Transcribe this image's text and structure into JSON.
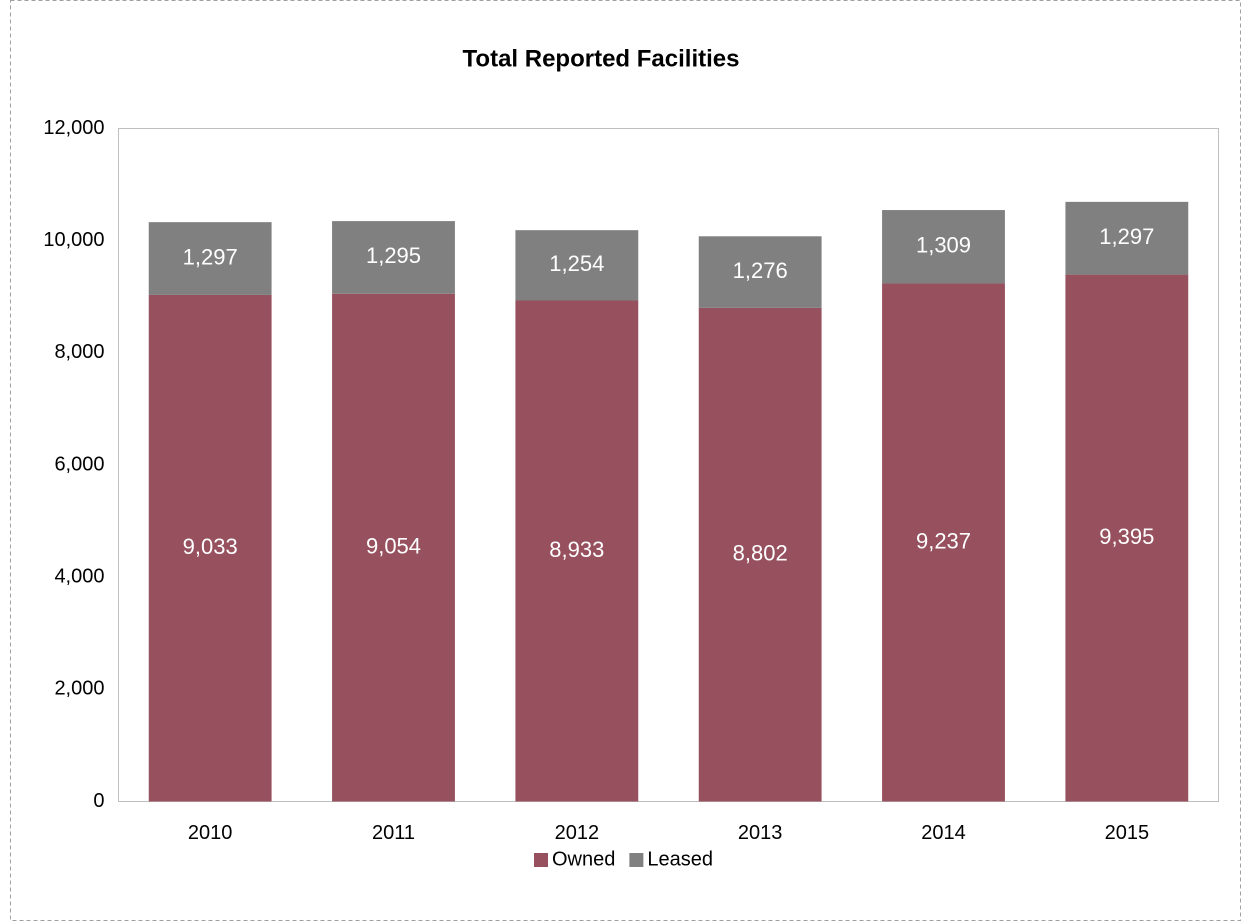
{
  "chart_data": {
    "type": "stacked_bar",
    "title": "Total Reported Facilities",
    "categories": [
      "2010",
      "2011",
      "2012",
      "2013",
      "2014",
      "2015"
    ],
    "series": [
      {
        "name": "Owned",
        "color": "#96505e",
        "values": [
          9033,
          9054,
          8933,
          8802,
          9237,
          9395
        ],
        "value_labels": [
          "9,033",
          "9,054",
          "8,933",
          "8,802",
          "9,237",
          "9,395"
        ]
      },
      {
        "name": "Leased",
        "color": "#808080",
        "values": [
          1297,
          1295,
          1254,
          1276,
          1309,
          1297
        ],
        "value_labels": [
          "1,297",
          "1,295",
          "1,254",
          "1,276",
          "1,309",
          "1,297"
        ]
      }
    ],
    "ylim": [
      0,
      12000
    ],
    "yticks": [
      0,
      {
        "value": 2000,
        "label": "2,000"
      },
      {
        "value": 4000,
        "label": "4,000"
      },
      {
        "value": 6000,
        "label": "6,000"
      },
      {
        "value": 8000,
        "label": "8,000"
      },
      {
        "value": 10000,
        "label": "10,000"
      },
      {
        "value": 12000,
        "label": "12,000"
      }
    ],
    "grid": false,
    "legend": "bottom"
  }
}
